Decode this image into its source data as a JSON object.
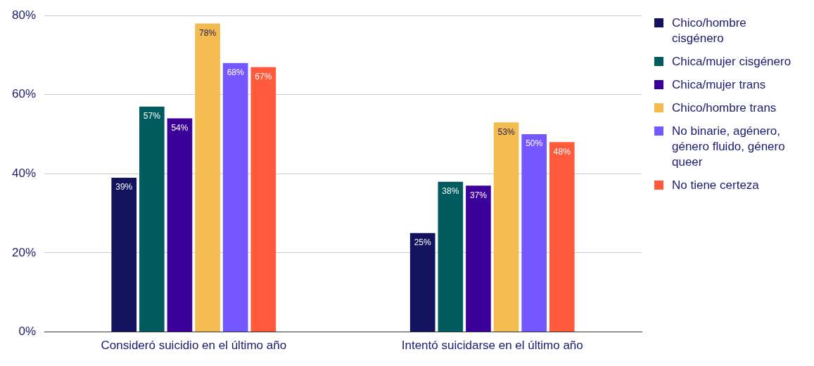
{
  "chart_data": {
    "type": "bar",
    "categories": [
      "Consideró suicidio en el último año",
      "Intentó suicidarse en el último año"
    ],
    "series": [
      {
        "name": "Chico/hombre cisgénero",
        "color": "#12125e",
        "values": [
          39,
          25
        ],
        "value_labels": [
          "39%",
          "25%"
        ]
      },
      {
        "name": "Chica/mujer cisgénero",
        "color": "#005b5e",
        "values": [
          57,
          38
        ],
        "value_labels": [
          "57%",
          "38%"
        ]
      },
      {
        "name": "Chica/mujer trans",
        "color": "#3b0099",
        "values": [
          54,
          37
        ],
        "value_labels": [
          "54%",
          "37%"
        ]
      },
      {
        "name": "Chico/hombre trans",
        "color": "#f4bc50",
        "values": [
          78,
          53
        ],
        "value_labels": [
          "78%",
          "53%"
        ]
      },
      {
        "name": "No binarie, agénero, género fluido, género queer",
        "color": "#7457ff",
        "values": [
          68,
          50
        ],
        "value_labels": [
          "68%",
          "50%"
        ]
      },
      {
        "name": "No tiene certeza",
        "color": "#ff5a3c",
        "values": [
          67,
          48
        ],
        "value_labels": [
          "67%",
          "48%"
        ]
      }
    ],
    "ylim": [
      0,
      80
    ],
    "yticks": [
      {
        "value": 0,
        "label": "0%"
      },
      {
        "value": 20,
        "label": "20%"
      },
      {
        "value": 40,
        "label": "40%"
      },
      {
        "value": 60,
        "label": "60%"
      },
      {
        "value": 80,
        "label": "80%"
      }
    ],
    "grid": "y",
    "legend": "right"
  }
}
